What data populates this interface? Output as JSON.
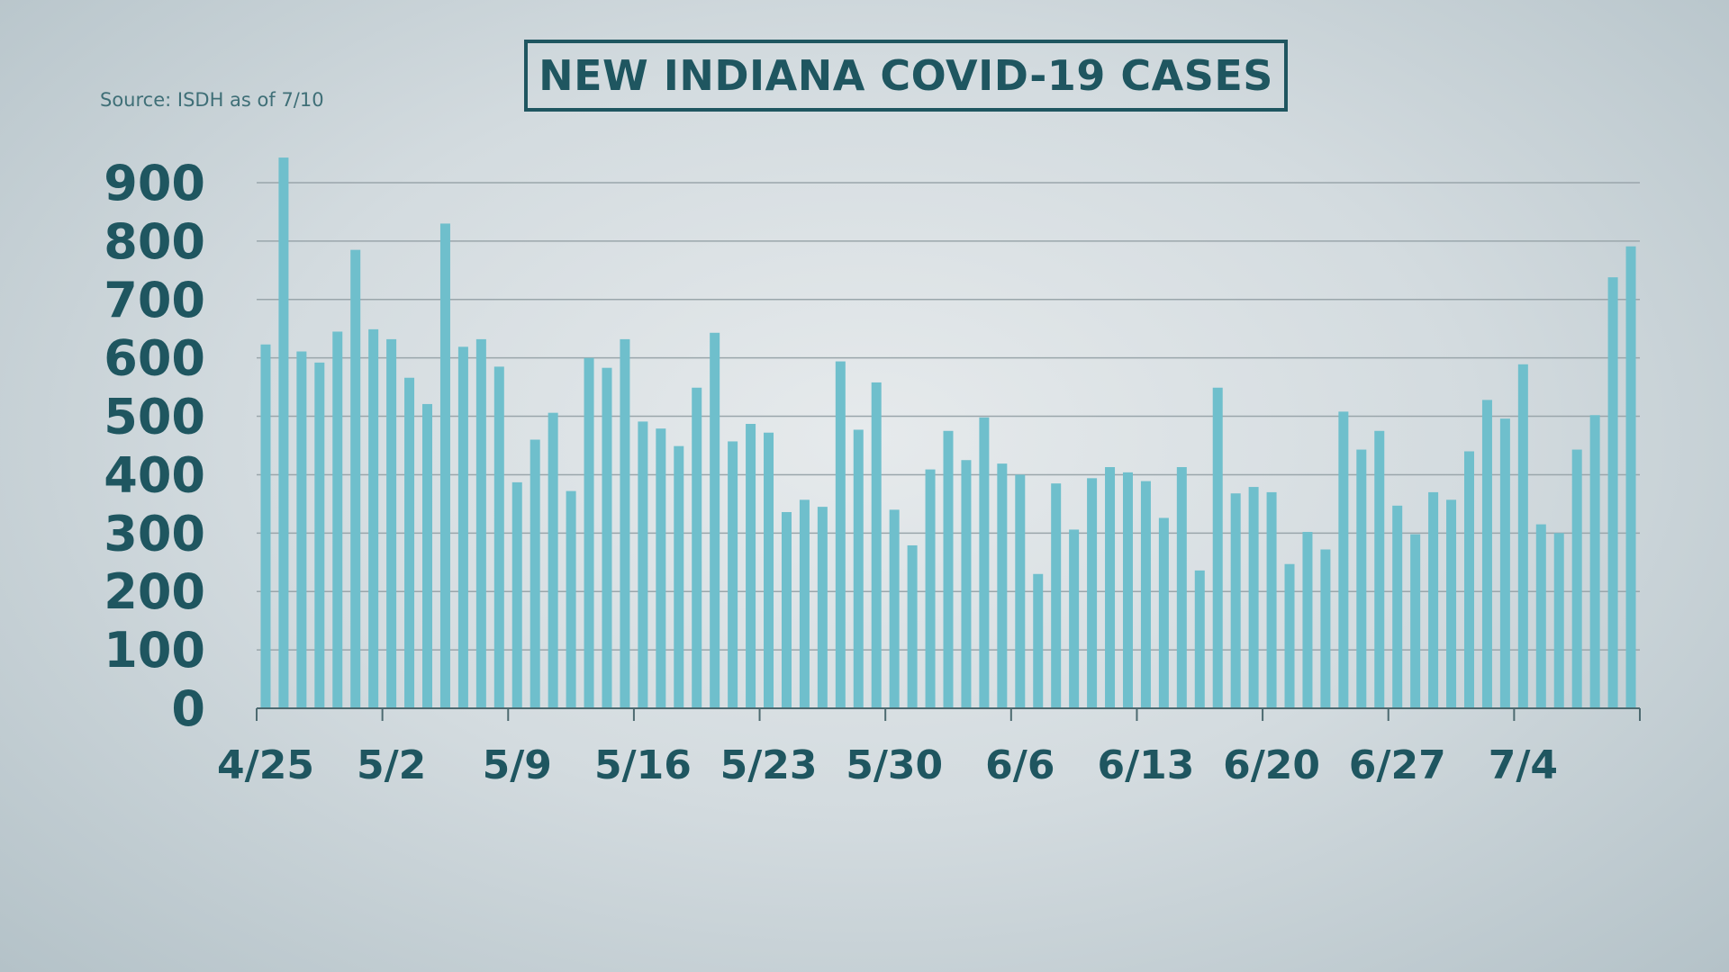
{
  "chart_data": {
    "type": "bar",
    "title": "NEW INDIANA COVID-19 CASES",
    "source": "Source: ISDH as of 7/10",
    "xlabel": "",
    "ylabel": "",
    "ylim": [
      0,
      900
    ],
    "yticks": [
      "0",
      "100",
      "200",
      "300",
      "400",
      "500",
      "600",
      "700",
      "800",
      "900"
    ],
    "xtick_labels": [
      "4/25",
      "5/2",
      "5/9",
      "5/16",
      "5/23",
      "5/30",
      "6/6",
      "6/13",
      "6/20",
      "6/27",
      "7/4"
    ],
    "grid": true,
    "start_date": "4/25",
    "end_date": "7/10",
    "bar_color": "#6fbfcc",
    "values": [
      623,
      943,
      611,
      592,
      645,
      785,
      649,
      632,
      566,
      521,
      830,
      619,
      632,
      585,
      387,
      460,
      506,
      372,
      600,
      583,
      632,
      491,
      479,
      449,
      549,
      643,
      457,
      487,
      472,
      336,
      357,
      345,
      594,
      477,
      558,
      340,
      279,
      409,
      475,
      425,
      498,
      419,
      400,
      230,
      385,
      306,
      394,
      413,
      404,
      389,
      326,
      413,
      236,
      549,
      368,
      379,
      370,
      247,
      302,
      272,
      508,
      443,
      475,
      347,
      298,
      370,
      357,
      440,
      528,
      496,
      589,
      315,
      300,
      443,
      502,
      738,
      791
    ]
  }
}
